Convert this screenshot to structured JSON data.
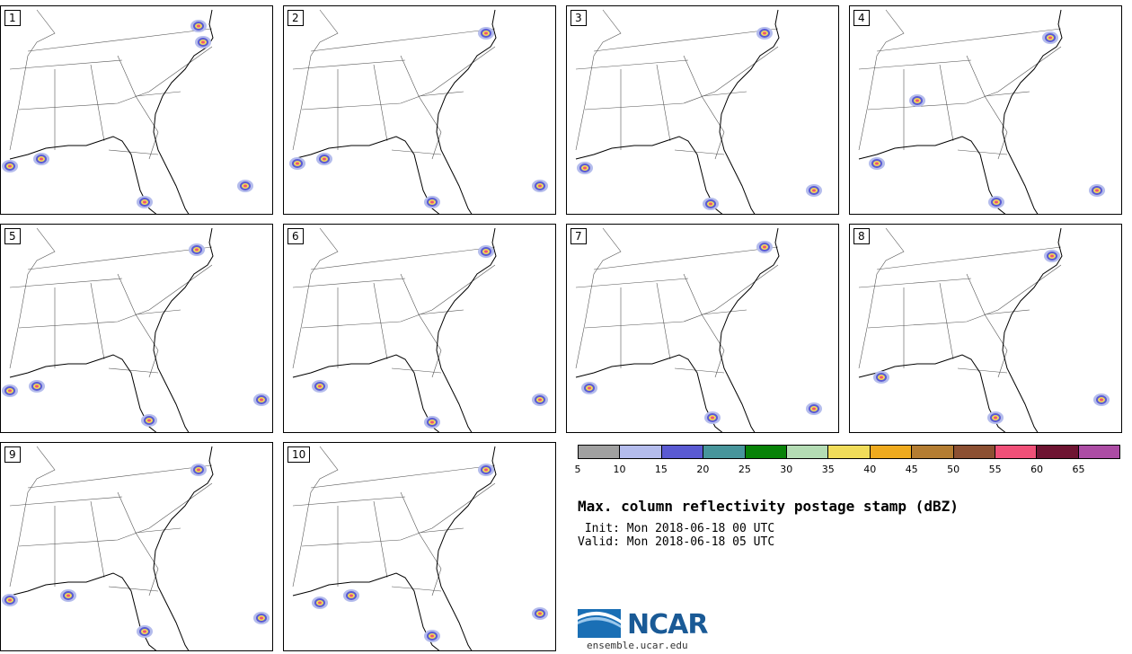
{
  "panels": [
    {
      "label": "1"
    },
    {
      "label": "2"
    },
    {
      "label": "3"
    },
    {
      "label": "4"
    },
    {
      "label": "5"
    },
    {
      "label": "6"
    },
    {
      "label": "7"
    },
    {
      "label": "8"
    },
    {
      "label": "9"
    },
    {
      "label": "10"
    }
  ],
  "colorbar": {
    "colors": [
      "#a0a0a0",
      "#b4bcec",
      "#5a5ad2",
      "#47959b",
      "#078207",
      "#b4dcb4",
      "#f0dc5a",
      "#eeaa1e",
      "#b47d32",
      "#8c5032",
      "#f05078",
      "#6e1432",
      "#ac4ca4"
    ],
    "ticks": [
      "5",
      "10",
      "15",
      "20",
      "25",
      "30",
      "35",
      "40",
      "45",
      "50",
      "55",
      "60",
      "65"
    ]
  },
  "title": "Max. column reflectivity postage stamp (dBZ)",
  "init": " Init: Mon 2018-06-18 00 UTC",
  "valid": "Valid: Mon 2018-06-18 05 UTC",
  "logo": {
    "text": "NCAR",
    "site": "ensemble.ucar.edu",
    "colors": {
      "blue": "#1a5a96",
      "light": "#5aaae0"
    }
  }
}
